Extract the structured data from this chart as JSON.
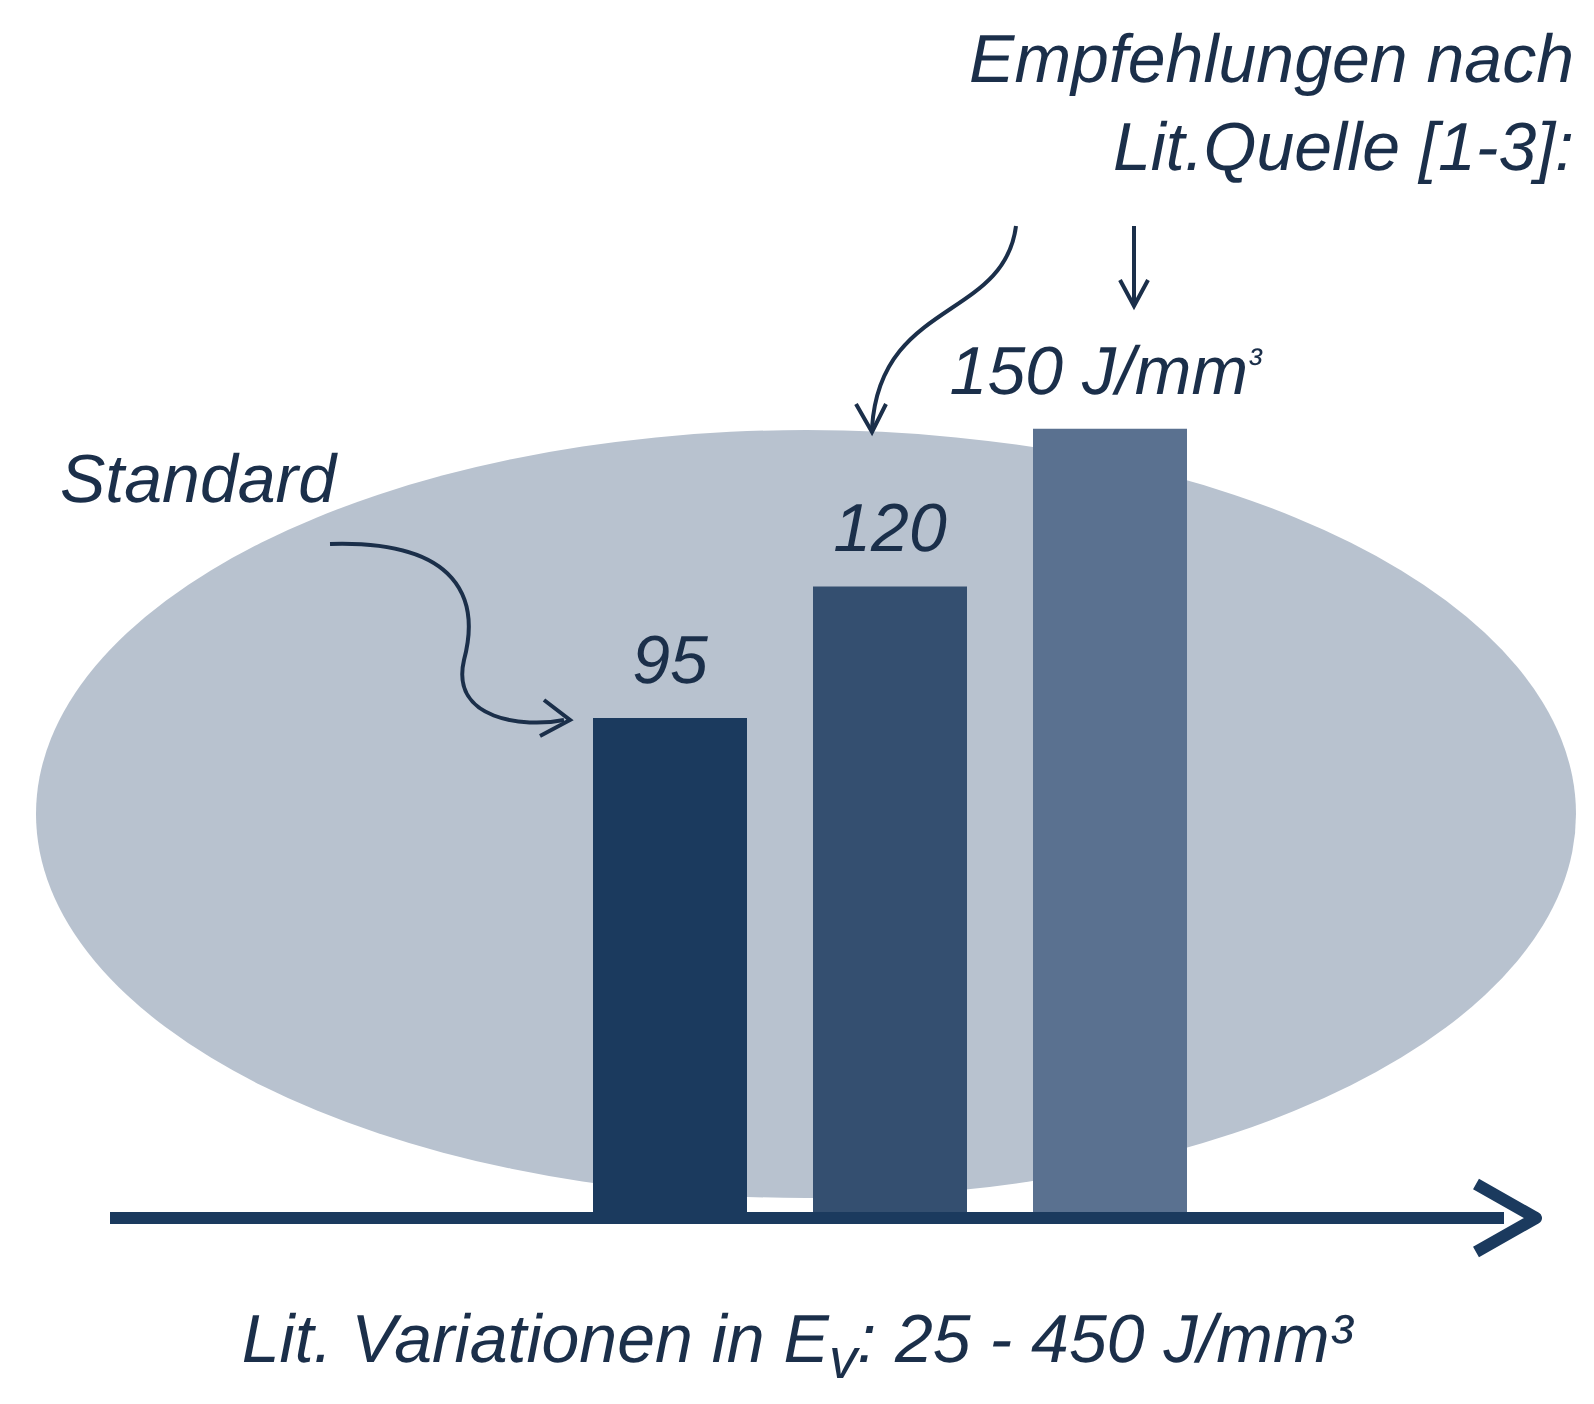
{
  "chart_data": {
    "type": "bar",
    "categories": [
      null,
      null,
      null
    ],
    "values": [
      95,
      120,
      150
    ],
    "colors": [
      "#1b3a5e",
      "#344f70",
      "#5a7190"
    ],
    "value_labels": [
      "95",
      "120",
      "150 J/mm³"
    ],
    "xlabel": "Lit. Variationen in E$_{v}$: 25 - 450 J/mm³",
    "annotations": [
      "Standard",
      "Empfehlungen nach Lit.Quelle [1-3]:"
    ]
  }
}
